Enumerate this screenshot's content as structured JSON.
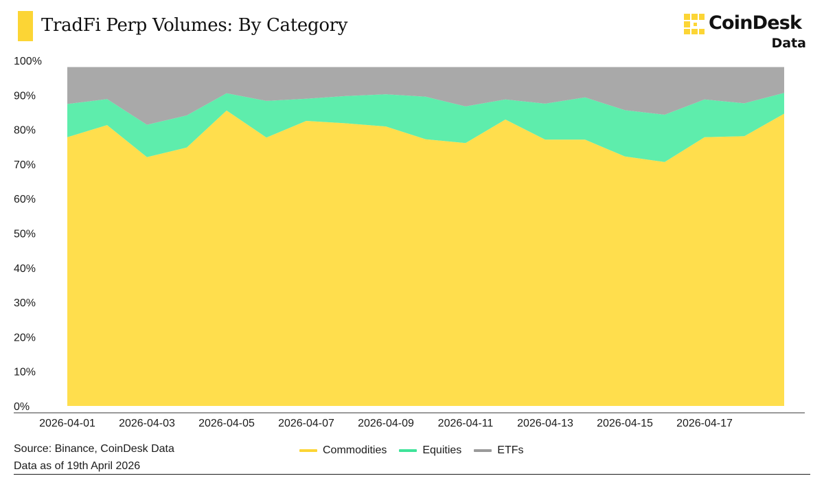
{
  "header": {
    "title": "TradFi Perp Volumes: By Category",
    "brand_name": "CoinDesk",
    "brand_sub": "Data"
  },
  "footer": {
    "source": "Source: Binance, CoinDesk Data",
    "as_of": "Data as of 19th April 2026"
  },
  "colors": {
    "accent": "#FCD535",
    "commodities": "#FFDE4D",
    "equities": "#5EEDAC",
    "etfs": "#A9A9A9"
  },
  "chart_data": {
    "type": "area",
    "stacked": true,
    "title": "TradFi Perp Volumes: By Category",
    "x": [
      "2026-04-01",
      "2026-04-02",
      "2026-04-03",
      "2026-04-04",
      "2026-04-05",
      "2026-04-06",
      "2026-04-07",
      "2026-04-08",
      "2026-04-09",
      "2026-04-10",
      "2026-04-11",
      "2026-04-12",
      "2026-04-13",
      "2026-04-14",
      "2026-04-15",
      "2026-04-16",
      "2026-04-17",
      "2026-04-18",
      "2026-04-19"
    ],
    "x_tick_labels": [
      "2026-04-01",
      "2026-04-03",
      "2026-04-05",
      "2026-04-07",
      "2026-04-09",
      "2026-04-11",
      "2026-04-13",
      "2026-04-15",
      "2026-04-17"
    ],
    "y_tick_labels": [
      "0%",
      "10%",
      "20%",
      "30%",
      "40%",
      "50%",
      "60%",
      "70%",
      "80%",
      "90%",
      "100%"
    ],
    "ylim": [
      0,
      100
    ],
    "y_unit": "%",
    "legend_position": "bottom-center",
    "grid": false,
    "series": [
      {
        "name": "Commodities",
        "color": "#FFDE4D",
        "values": [
          77.8,
          81.3,
          72,
          74.8,
          85.5,
          77.7,
          82.5,
          81.8,
          80.9,
          77.2,
          76.1,
          82.9,
          77.1,
          77.1,
          72.2,
          70.6,
          77.8,
          78.1,
          84.6
        ]
      },
      {
        "name": "Equities",
        "color": "#5EEDAC",
        "values": [
          9.6,
          7.5,
          9.4,
          9.3,
          5,
          10.6,
          6.4,
          7.9,
          9.3,
          12.3,
          10.6,
          5.8,
          10.4,
          12.2,
          13.4,
          13.7,
          10.9,
          9.5,
          6
        ]
      },
      {
        "name": "ETFs",
        "color": "#A9A9A9",
        "values": [
          10.7,
          9.3,
          16.7,
          14,
          7.6,
          9.8,
          9.2,
          8.4,
          7.9,
          8.6,
          11.4,
          9.4,
          10.6,
          8.8,
          12.5,
          13.8,
          9.4,
          10.5,
          7.5
        ]
      }
    ]
  }
}
